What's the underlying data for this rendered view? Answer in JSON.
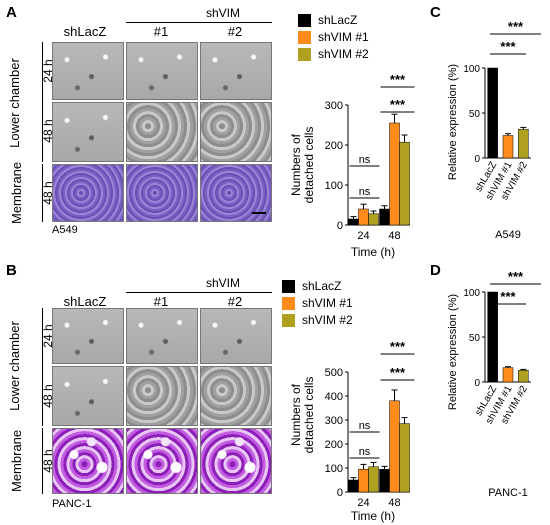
{
  "panels": {
    "A": "A",
    "B": "B",
    "C": "C",
    "D": "D"
  },
  "colors": {
    "shLacZ": "#000000",
    "shVIM1": "#ff8c1a",
    "shVIM2": "#b0a020"
  },
  "microscopy": {
    "group_label": "shVIM",
    "col_labels": [
      "shLacZ",
      "#1",
      "#2"
    ],
    "row_labels": [
      "24 h",
      "48 h",
      "48 h"
    ],
    "side_labels": [
      "Lower chamber",
      "Membrane"
    ],
    "cell_lines": [
      "A549",
      "PANC-1"
    ]
  },
  "legend": [
    "shLacZ",
    "shVIM #1",
    "shVIM #2"
  ],
  "detached": {
    "ylabel": "Numbers of detached cells",
    "xlabel": "Time (h)",
    "sig_ns": "ns",
    "sig_star": "***"
  },
  "expression": {
    "ylabel": "Relative expression (%)",
    "ticks": [
      "0",
      "50",
      "100"
    ],
    "sig_star": "***"
  },
  "chart_data": [
    {
      "type": "bar",
      "panel": "A",
      "categories": [
        "24",
        "48"
      ],
      "xlabel": "Time (h)",
      "ylabel": "Numbers of detached cells",
      "ylim": [
        0,
        300
      ],
      "yticks": [
        0,
        100,
        200,
        300
      ],
      "series": [
        {
          "name": "shLacZ",
          "values": [
            15,
            40
          ],
          "errors": [
            6,
            8
          ]
        },
        {
          "name": "shVIM #1",
          "values": [
            40,
            255
          ],
          "errors": [
            12,
            22
          ]
        },
        {
          "name": "shVIM #2",
          "values": [
            28,
            207
          ],
          "errors": [
            7,
            18
          ]
        }
      ]
    },
    {
      "type": "bar",
      "panel": "B",
      "categories": [
        "24",
        "48"
      ],
      "xlabel": "Time (h)",
      "ylabel": "Numbers of detached cells",
      "ylim": [
        0,
        500
      ],
      "yticks": [
        0,
        100,
        200,
        300,
        400,
        500
      ],
      "series": [
        {
          "name": "shLacZ",
          "values": [
            50,
            95
          ],
          "errors": [
            10,
            12
          ]
        },
        {
          "name": "shVIM #1",
          "values": [
            95,
            380
          ],
          "errors": [
            20,
            45
          ]
        },
        {
          "name": "shVIM #2",
          "values": [
            105,
            285
          ],
          "errors": [
            18,
            25
          ]
        }
      ]
    },
    {
      "type": "bar",
      "panel": "C",
      "cell_line": "A549",
      "categories": [
        "shLacZ",
        "shVIM #1",
        "shVIM #2"
      ],
      "ylabel": "Relative expression (%)",
      "ylim": [
        0,
        100
      ],
      "values": [
        100,
        25,
        32
      ],
      "errors": [
        0,
        2,
        2
      ]
    },
    {
      "type": "bar",
      "panel": "D",
      "cell_line": "PANC-1",
      "categories": [
        "shLacZ",
        "shVIM #1",
        "shVIM #2"
      ],
      "ylabel": "Relative expression (%)",
      "ylim": [
        0,
        100
      ],
      "values": [
        100,
        16,
        13
      ],
      "errors": [
        0,
        1,
        1
      ]
    }
  ]
}
